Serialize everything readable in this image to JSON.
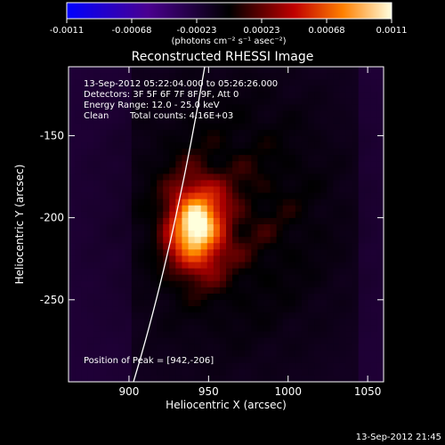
{
  "chart_data": {
    "type": "heatmap",
    "title": "Reconstructed RHESSI Image",
    "xlabel": "Heliocentric X (arcsec)",
    "ylabel": "Heliocentric Y (arcsec)",
    "xlim": [
      862,
      1060
    ],
    "ylim": [
      -300,
      -108
    ],
    "x_ticks": [
      900,
      950,
      1000,
      1050
    ],
    "y_ticks": [
      -150,
      -200,
      -250
    ],
    "colorbar": {
      "label": "(photons cm⁻² s⁻¹ asec⁻²)",
      "range": [
        -0.0011,
        0.0011
      ],
      "ticks": [
        "-0.0011",
        "-0.00068",
        "-0.00023",
        "0.00023",
        "0.00068",
        "0.0011"
      ]
    },
    "peak": {
      "x": 942,
      "y": -206
    },
    "annotations": {
      "time_range": "13-Sep-2012 05:22:04.000 to 05:26:26.000",
      "detectors": "Detectors: 3F 5F 6F 7F 8F 9F, Att 0",
      "energy": "Energy Range: 12.0 - 25.0 keV",
      "clean": "Clean",
      "total_counts": "Total counts: 4.16E+03",
      "position_of_peak": "Position of Peak = [942,-206]"
    },
    "footer_timestamp": "13-Sep-2012 21:45",
    "grid": false
  }
}
